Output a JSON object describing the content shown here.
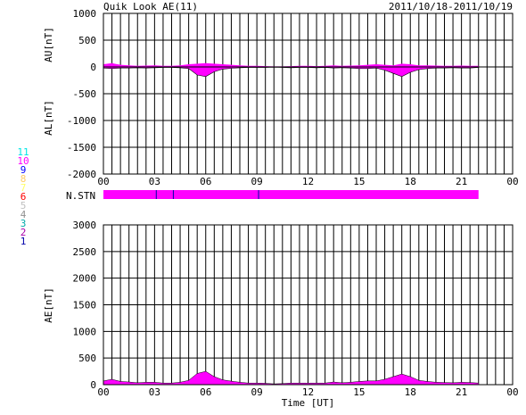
{
  "header": {
    "title": "Quik Look AE(11)",
    "date_range": "2011/10/18-2011/10/19"
  },
  "colors": {
    "fill": "#ff00ff",
    "axis": "#000000",
    "grid": "#000000",
    "bar_tick": "#0000aa"
  },
  "station_legend": [
    {
      "label": "11",
      "color": "#00e5e5"
    },
    {
      "label": "10",
      "color": "#ff00ff"
    },
    {
      "label": "9",
      "color": "#0000ff"
    },
    {
      "label": "8",
      "color": "#ffcc66"
    },
    {
      "label": "7",
      "color": "#ffff66"
    },
    {
      "label": "6",
      "color": "#ff0000"
    },
    {
      "label": "5",
      "color": "#c0c0c0"
    },
    {
      "label": "4",
      "color": "#909090"
    },
    {
      "label": "3",
      "color": "#00aaaa"
    },
    {
      "label": "2",
      "color": "#aa00aa"
    },
    {
      "label": "1",
      "color": "#0000aa"
    }
  ],
  "chart_data": [
    {
      "type": "area",
      "panel": "AU/AL",
      "ylabel_top": "AU[nT]",
      "ylabel_bottom": "AL[nT]",
      "xlabel": "",
      "x_ticks": [
        "00",
        "03",
        "06",
        "09",
        "12",
        "15",
        "18",
        "21",
        "00"
      ],
      "x_range_hours": [
        0,
        24
      ],
      "y_ticks": [
        "1000",
        "500",
        "0",
        "-500",
        "-1000",
        "-1500",
        "-2000"
      ],
      "ylim": [
        -2000,
        1000
      ],
      "grid": true,
      "data_end_hour": 22.0,
      "series": [
        {
          "values_x_hours": [
            0,
            0.5,
            1,
            1.5,
            2,
            2.5,
            3,
            3.5,
            4,
            4.5,
            5,
            5.5,
            6,
            6.5,
            7,
            7.5,
            8,
            8.5,
            9,
            9.5,
            10,
            10.5,
            11,
            11.5,
            12,
            12.5,
            13,
            13.5,
            14,
            14.5,
            15,
            15.5,
            16,
            16.5,
            17,
            17.5,
            18,
            18.5,
            19,
            19.5,
            20,
            20.5,
            21,
            21.5,
            22
          ],
          "upper_values": [
            50,
            70,
            40,
            30,
            20,
            25,
            30,
            20,
            20,
            30,
            50,
            60,
            70,
            60,
            50,
            40,
            30,
            20,
            20,
            15,
            10,
            10,
            15,
            20,
            20,
            15,
            20,
            30,
            20,
            25,
            30,
            40,
            50,
            40,
            30,
            60,
            50,
            30,
            30,
            25,
            20,
            20,
            25,
            20,
            20
          ],
          "lower_values": [
            -20,
            -30,
            -20,
            -20,
            -15,
            -20,
            -15,
            -10,
            -10,
            -15,
            -30,
            -150,
            -180,
            -90,
            -40,
            -25,
            -15,
            -10,
            -10,
            -10,
            -5,
            -10,
            -15,
            -10,
            -10,
            -15,
            -10,
            -20,
            -15,
            -20,
            -30,
            -30,
            -20,
            -60,
            -120,
            -180,
            -100,
            -50,
            -30,
            -20,
            -20,
            -15,
            -20,
            -20,
            -10
          ]
        }
      ]
    },
    {
      "type": "bar",
      "panel": "N.STN",
      "label": "N.STN",
      "x_range_hours": [
        0,
        22
      ],
      "station_changes_hours": [
        3.1,
        4.1,
        9.1
      ]
    },
    {
      "type": "area",
      "panel": "AE",
      "ylabel": "AE[nT]",
      "xlabel": "Time [UT]",
      "x_ticks": [
        "00",
        "03",
        "06",
        "09",
        "12",
        "15",
        "18",
        "21",
        "00"
      ],
      "x_range_hours": [
        0,
        24
      ],
      "y_ticks": [
        "3000",
        "2500",
        "2000",
        "1500",
        "1000",
        "500",
        "0"
      ],
      "ylim": [
        0,
        3000
      ],
      "grid": true,
      "data_end_hour": 22.0,
      "series": [
        {
          "x_hours": [
            0,
            0.5,
            1,
            1.5,
            2,
            2.5,
            3,
            3.5,
            4,
            4.5,
            5,
            5.5,
            6,
            6.5,
            7,
            7.5,
            8,
            8.5,
            9,
            9.5,
            10,
            10.5,
            11,
            11.5,
            12,
            12.5,
            13,
            13.5,
            14,
            14.5,
            15,
            15.5,
            16,
            16.5,
            17,
            17.5,
            18,
            18.5,
            19,
            19.5,
            20,
            20.5,
            21,
            21.5,
            22
          ],
          "values": [
            70,
            100,
            60,
            50,
            35,
            45,
            45,
            30,
            30,
            45,
            80,
            210,
            250,
            150,
            90,
            65,
            45,
            30,
            30,
            25,
            15,
            20,
            30,
            30,
            30,
            30,
            30,
            50,
            35,
            45,
            60,
            70,
            70,
            100,
            150,
            200,
            150,
            80,
            60,
            45,
            40,
            35,
            45,
            40,
            30
          ]
        }
      ]
    }
  ]
}
